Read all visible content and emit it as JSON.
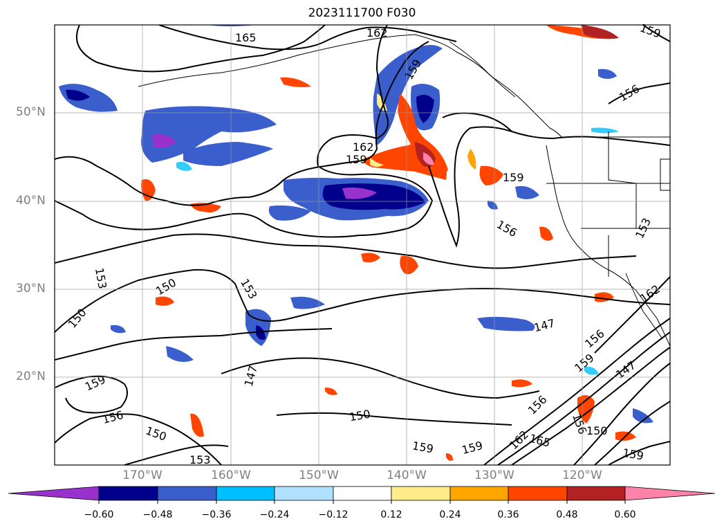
{
  "title": "2023111700 F030",
  "lat_ticks": [
    "50°N",
    "40°N",
    "30°N",
    "20°N"
  ],
  "lon_ticks": [
    "170°W",
    "160°W",
    "150°W",
    "140°W",
    "130°W",
    "120°W"
  ],
  "colorbar": {
    "labels": [
      "−0.60",
      "−0.48",
      "−0.36",
      "−0.24",
      "−0.12",
      "0.12",
      "0.24",
      "0.36",
      "0.48",
      "0.60"
    ],
    "colors": [
      "#9932cc",
      "#00008b",
      "#3a5fcd",
      "#00bfff",
      "#b0e2ff",
      "#ffffff",
      "#ffec8b",
      "#ffa500",
      "#ff4500",
      "#b22222",
      "#ff82ab"
    ]
  },
  "contour_labels": [
    "165",
    "162",
    "159",
    "156",
    "153",
    "150",
    "147"
  ]
}
